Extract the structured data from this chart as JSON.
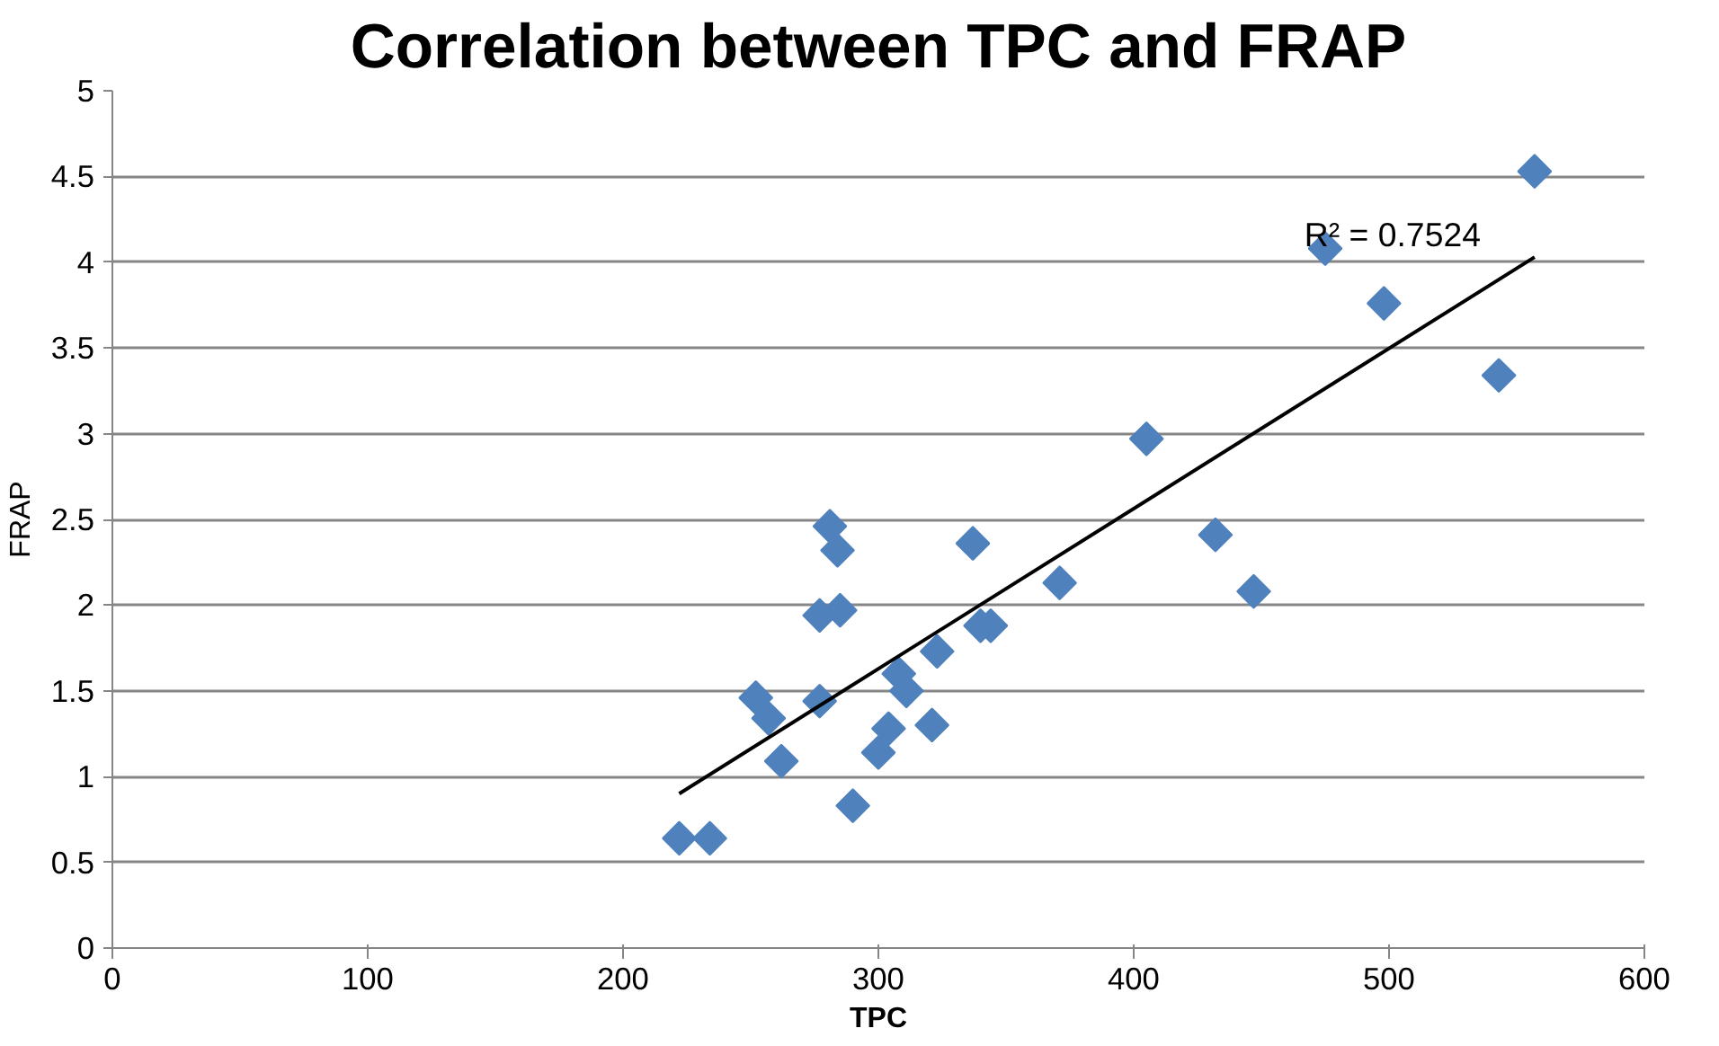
{
  "chart_data": {
    "type": "scatter",
    "title": "Correlation between TPC and FRAP",
    "xlabel": "TPC",
    "ylabel": "FRAP",
    "xlim": [
      0,
      600
    ],
    "xticks": [
      0,
      100,
      200,
      300,
      400,
      500,
      600
    ],
    "ylim": [
      0,
      5
    ],
    "yticks": [
      0,
      0.5,
      1,
      1.5,
      2,
      2.5,
      3,
      3.5,
      4,
      4.5,
      5
    ],
    "grid": "y",
    "annotations": [
      "R² = 0.7524"
    ],
    "series": [
      {
        "marker": "diamond",
        "color": "#4f81bd",
        "x": [
          222,
          234,
          252,
          257,
          262,
          277,
          277,
          281,
          284,
          285,
          290,
          300,
          304,
          308,
          311,
          321,
          323,
          337,
          340,
          344,
          371,
          405,
          432,
          447,
          475,
          498,
          543,
          557
        ],
        "values": [
          0.64,
          0.64,
          1.46,
          1.34,
          1.09,
          1.94,
          1.44,
          2.46,
          2.32,
          1.97,
          0.83,
          1.14,
          1.28,
          1.6,
          1.5,
          1.3,
          1.73,
          2.36,
          1.88,
          1.88,
          2.13,
          2.97,
          2.41,
          2.08,
          4.08,
          3.76,
          3.34,
          4.53
        ]
      },
      {
        "type": "line",
        "marker": "none",
        "line_style": "solid",
        "color": "#000000",
        "x": [
          222,
          557
        ],
        "values": [
          0.9,
          4.03
        ]
      }
    ]
  }
}
